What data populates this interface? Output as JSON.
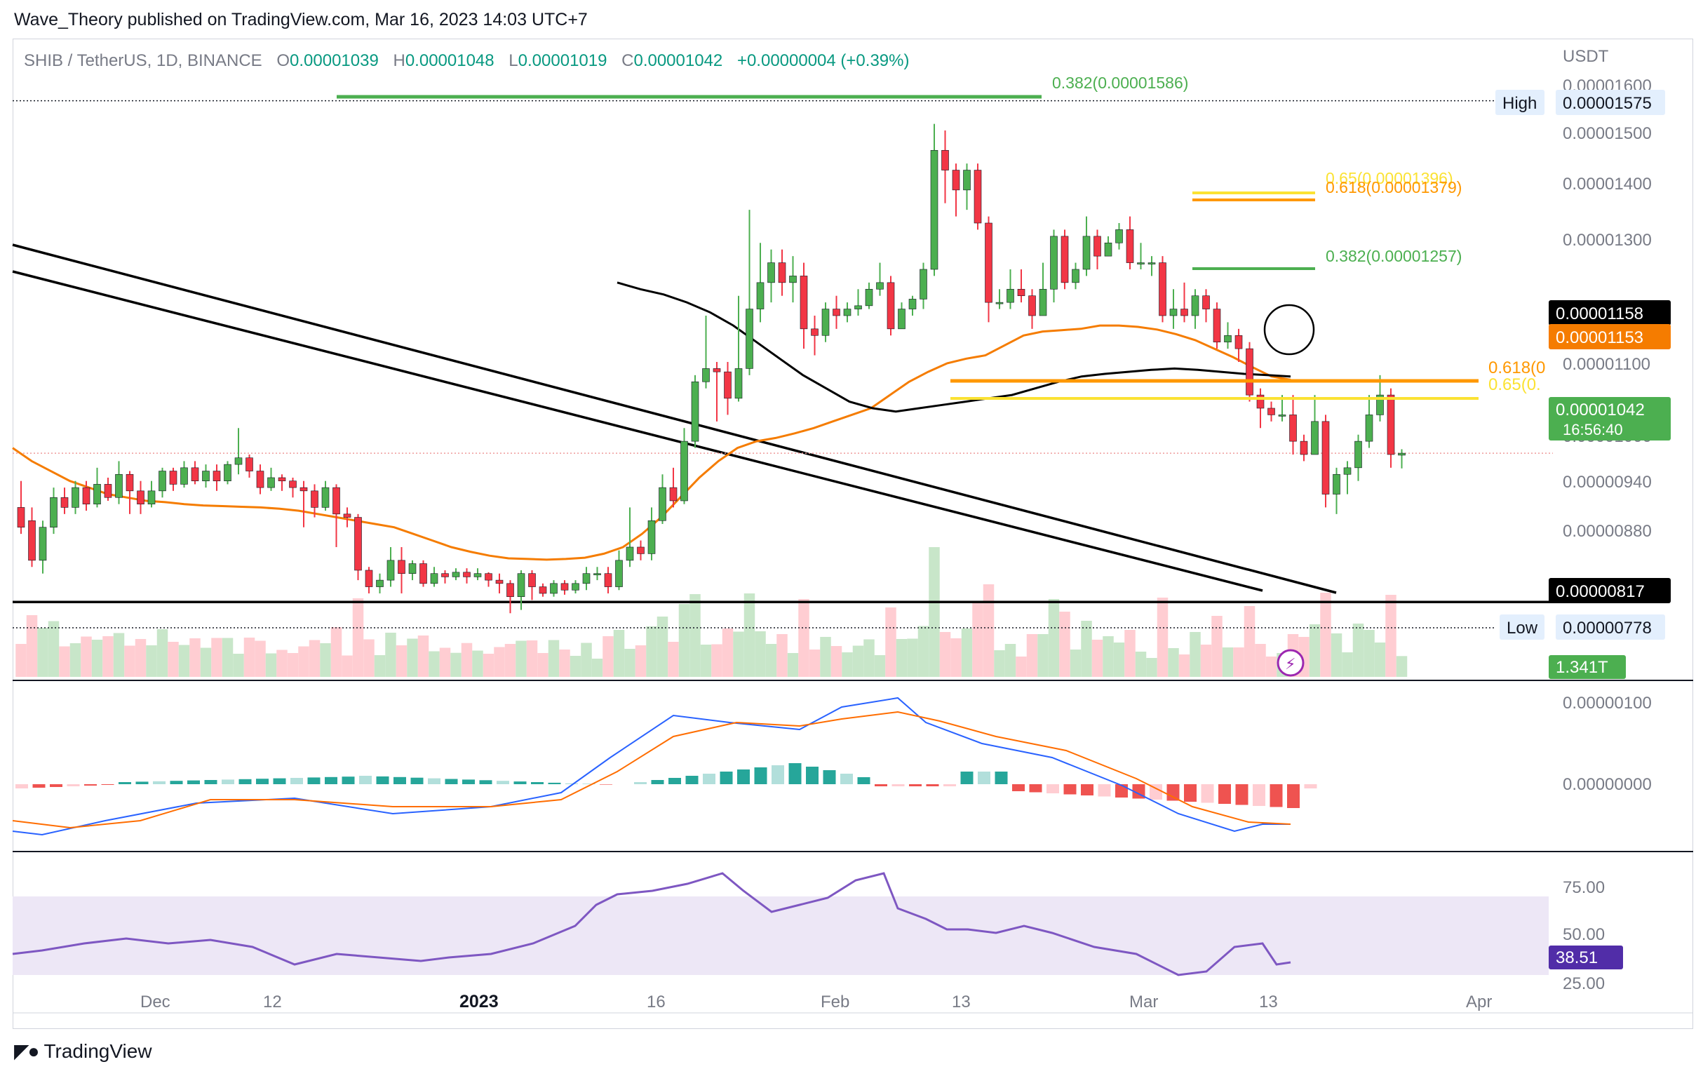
{
  "publisher": "Wave_Theory published on TradingView.com, Mar 16, 2023 14:03 UTC+7",
  "symbol_line": {
    "symbol": "SHIB / TetherUS, 1D, BINANCE",
    "o_label": "O",
    "o": "0.00001039",
    "h_label": "H",
    "h": "0.00001048",
    "l_label": "L",
    "l": "0.00001019",
    "c_label": "C",
    "c": "0.00001042",
    "change": "+0.00000004 (+0.39%)"
  },
  "currency": "USDT",
  "branding": "TradingView",
  "colors": {
    "up": "#26a69a",
    "down": "#ef5350",
    "candle_up": "#4caf50",
    "candle_down": "#f23645",
    "ema_orange": "#f57c00",
    "ema_black": "#000000",
    "fib_green": "#4caf50",
    "fib_orange": "#ff9800",
    "fib_yellow": "#fbe233",
    "macd_blue": "#2962ff",
    "signal_orange": "#ff6d00",
    "rsi": "#7e57c2",
    "rsi_band": "#ede7f6"
  },
  "price_axis_labels": [
    "0.00001600",
    "0.00001500",
    "0.00001400",
    "0.00001300",
    "0.00001100",
    "0.00001000",
    "0.00000940",
    "0.00000880",
    "0.00000778"
  ],
  "price_badges": {
    "high_label": "High",
    "high": "0.00001575",
    "ema_black": "0.00001158",
    "ema_orange": "0.00001153",
    "last": "0.00001042",
    "countdown": "16:56:40",
    "support": "0.00000817",
    "low_label": "Low",
    "low": "0.00000778",
    "volume": "1.341T"
  },
  "fib_labels": {
    "top_0382": "0.382(0.00001586)",
    "upper_065": "0.65(0.00001396)",
    "upper_0618": "0.618(0.00001379)",
    "mid_0382": "0.382(0.00001257)",
    "lower_0618": "0.618(0",
    "lower_065": "0.65(0."
  },
  "macd_axis_labels": [
    "0.00000100",
    "0.00000000"
  ],
  "rsi_axis_labels": [
    "75.00",
    "50.00",
    "25.00"
  ],
  "rsi_value": "38.51",
  "time_labels": [
    "Dec",
    "12",
    "2023",
    "16",
    "Feb",
    "13",
    "Mar",
    "13",
    "Apr"
  ],
  "chart_data": {
    "type": "candlestick",
    "symbol": "SHIB / TetherUS, 1D, BINANCE",
    "y_axis": {
      "ylim": [
        7.6e-06,
        1.62e-05
      ]
    },
    "candles": [
      [
        960,
        930,
        1000,
        920
      ],
      [
        940,
        880,
        960,
        870
      ],
      [
        880,
        930,
        940,
        860
      ],
      [
        930,
        975,
        990,
        920
      ],
      [
        975,
        960,
        990,
        950
      ],
      [
        960,
        990,
        1000,
        950
      ],
      [
        990,
        965,
        1000,
        955
      ],
      [
        965,
        995,
        1020,
        960
      ],
      [
        995,
        975,
        1005,
        970
      ],
      [
        975,
        1010,
        1030,
        965
      ],
      [
        1010,
        985,
        1015,
        950
      ],
      [
        985,
        965,
        1000,
        950
      ],
      [
        965,
        985,
        1000,
        960
      ],
      [
        985,
        1015,
        1020,
        975
      ],
      [
        1015,
        995,
        1020,
        985
      ],
      [
        995,
        1020,
        1030,
        990
      ],
      [
        1020,
        1000,
        1030,
        995
      ],
      [
        1000,
        1015,
        1025,
        990
      ],
      [
        1015,
        1000,
        1025,
        985
      ],
      [
        1000,
        1025,
        1030,
        995
      ],
      [
        1025,
        1035,
        1080,
        1010
      ],
      [
        1035,
        1015,
        1040,
        1005
      ],
      [
        1015,
        990,
        1025,
        980
      ],
      [
        990,
        1005,
        1020,
        985
      ],
      [
        1005,
        1000,
        1010,
        985
      ],
      [
        1000,
        990,
        1005,
        975
      ],
      [
        990,
        985,
        1000,
        930
      ],
      [
        985,
        960,
        995,
        945
      ],
      [
        960,
        990,
        1000,
        955
      ],
      [
        990,
        950,
        995,
        900
      ],
      [
        950,
        945,
        960,
        930
      ],
      [
        945,
        865,
        950,
        850
      ],
      [
        865,
        840,
        870,
        830
      ],
      [
        840,
        850,
        860,
        830
      ],
      [
        850,
        880,
        900,
        840
      ],
      [
        880,
        860,
        900,
        830
      ],
      [
        860,
        875,
        880,
        850
      ],
      [
        875,
        845,
        880,
        840
      ],
      [
        845,
        860,
        870,
        840
      ],
      [
        860,
        855,
        865,
        845
      ],
      [
        855,
        862,
        868,
        850
      ],
      [
        862,
        855,
        868,
        845
      ],
      [
        855,
        860,
        868,
        850
      ],
      [
        860,
        850,
        862,
        840
      ],
      [
        850,
        845,
        860,
        830
      ],
      [
        845,
        825,
        850,
        800
      ],
      [
        825,
        860,
        865,
        805
      ],
      [
        860,
        840,
        865,
        820
      ],
      [
        840,
        830,
        845,
        825
      ],
      [
        830,
        845,
        850,
        825
      ],
      [
        845,
        835,
        850,
        828
      ],
      [
        835,
        845,
        850,
        830
      ],
      [
        845,
        860,
        870,
        835
      ],
      [
        860,
        860,
        870,
        850
      ],
      [
        860,
        840,
        870,
        830
      ],
      [
        840,
        880,
        895,
        835
      ],
      [
        880,
        900,
        960,
        870
      ],
      [
        900,
        890,
        910,
        880
      ],
      [
        890,
        940,
        960,
        880
      ],
      [
        940,
        990,
        1010,
        935
      ],
      [
        990,
        970,
        1020,
        960
      ],
      [
        970,
        1060,
        1080,
        965
      ],
      [
        1060,
        1150,
        1160,
        1050
      ],
      [
        1150,
        1170,
        1250,
        1140
      ],
      [
        1170,
        1165,
        1180,
        1090
      ],
      [
        1165,
        1125,
        1180,
        1100
      ],
      [
        1125,
        1170,
        1280,
        1120
      ],
      [
        1170,
        1260,
        1410,
        1160
      ],
      [
        1260,
        1300,
        1360,
        1240
      ],
      [
        1300,
        1330,
        1350,
        1270
      ],
      [
        1330,
        1300,
        1350,
        1280
      ],
      [
        1300,
        1310,
        1340,
        1270
      ],
      [
        1310,
        1230,
        1330,
        1200
      ],
      [
        1230,
        1220,
        1250,
        1190
      ],
      [
        1220,
        1260,
        1270,
        1210
      ],
      [
        1260,
        1250,
        1280,
        1230
      ],
      [
        1250,
        1260,
        1270,
        1240
      ],
      [
        1260,
        1265,
        1290,
        1250
      ],
      [
        1265,
        1290,
        1300,
        1260
      ],
      [
        1290,
        1300,
        1330,
        1280
      ],
      [
        1300,
        1230,
        1310,
        1220
      ],
      [
        1230,
        1260,
        1270,
        1230
      ],
      [
        1260,
        1275,
        1280,
        1250
      ],
      [
        1275,
        1320,
        1330,
        1260
      ],
      [
        1320,
        1500,
        1540,
        1310
      ],
      [
        1500,
        1470,
        1530,
        1420
      ],
      [
        1470,
        1440,
        1480,
        1400
      ],
      [
        1440,
        1470,
        1480,
        1410
      ],
      [
        1470,
        1390,
        1480,
        1380
      ],
      [
        1390,
        1270,
        1400,
        1240
      ],
      [
        1270,
        1270,
        1290,
        1260
      ],
      [
        1270,
        1290,
        1320,
        1260
      ],
      [
        1290,
        1280,
        1320,
        1270
      ],
      [
        1280,
        1250,
        1290,
        1230
      ],
      [
        1250,
        1290,
        1330,
        1250
      ],
      [
        1290,
        1370,
        1380,
        1270
      ],
      [
        1370,
        1300,
        1380,
        1290
      ],
      [
        1300,
        1320,
        1330,
        1290
      ],
      [
        1320,
        1370,
        1400,
        1310
      ],
      [
        1370,
        1340,
        1380,
        1320
      ],
      [
        1340,
        1360,
        1370,
        1340
      ],
      [
        1360,
        1380,
        1390,
        1350
      ],
      [
        1380,
        1330,
        1400,
        1320
      ],
      [
        1330,
        1330,
        1360,
        1320
      ],
      [
        1330,
        1330,
        1340,
        1310
      ],
      [
        1330,
        1250,
        1340,
        1240
      ],
      [
        1250,
        1260,
        1290,
        1230
      ],
      [
        1260,
        1250,
        1300,
        1240
      ],
      [
        1250,
        1280,
        1290,
        1230
      ],
      [
        1280,
        1260,
        1290,
        1240
      ],
      [
        1260,
        1210,
        1270,
        1200
      ],
      [
        1210,
        1220,
        1240,
        1200
      ],
      [
        1220,
        1200,
        1230,
        1180
      ],
      [
        1200,
        1130,
        1210,
        1120
      ],
      [
        1130,
        1110,
        1140,
        1080
      ],
      [
        1110,
        1100,
        1120,
        1090
      ],
      [
        1100,
        1100,
        1130,
        1090
      ],
      [
        1100,
        1060,
        1130,
        1040
      ],
      [
        1060,
        1040,
        1070,
        1030
      ],
      [
        1040,
        1090,
        1130,
        1040
      ],
      [
        1090,
        980,
        1100,
        960
      ],
      [
        980,
        1010,
        1020,
        950
      ],
      [
        1010,
        1020,
        1030,
        980
      ],
      [
        1020,
        1060,
        1070,
        1000
      ],
      [
        1060,
        1100,
        1130,
        1050
      ],
      [
        1100,
        1130,
        1160,
        1090
      ],
      [
        1130,
        1040,
        1140,
        1020
      ],
      [
        1039,
        1042,
        1048,
        1019
      ]
    ],
    "ema_orange": [
      1050,
      1030,
      1015,
      1000,
      990,
      980,
      975,
      970,
      968,
      965,
      963,
      962,
      961,
      960,
      958,
      955,
      950,
      945,
      940,
      935,
      930,
      920,
      910,
      900,
      893,
      887,
      883,
      882,
      881,
      882,
      884,
      890,
      900,
      920,
      945,
      975,
      1005,
      1030,
      1050,
      1060,
      1065,
      1072,
      1080,
      1090,
      1100,
      1110,
      1130,
      1150,
      1165,
      1178,
      1185,
      1190,
      1205,
      1220,
      1226,
      1228,
      1230,
      1235,
      1235,
      1233,
      1229,
      1222,
      1213,
      1200,
      1187,
      1172,
      1158,
      1153
    ],
    "ema_black": [
      1300,
      1290,
      1282,
      1270,
      1255,
      1235,
      1210,
      1185,
      1160,
      1140,
      1120,
      1110,
      1105,
      1110,
      1115,
      1120,
      1125,
      1130,
      1140,
      1150,
      1158,
      1162,
      1165,
      1168,
      1170,
      1168,
      1165,
      1162,
      1160,
      1158
    ],
    "resistance_price": 8.17e-06,
    "fib_levels": [
      {
        "ratio": 0.382,
        "price": 1.586e-05
      },
      {
        "ratio": 0.65,
        "price": 1.396e-05
      },
      {
        "ratio": 0.618,
        "price": 1.379e-05
      },
      {
        "ratio": 0.382,
        "price": 1.257e-05
      }
    ],
    "last_price": 1.042e-05,
    "high_price": 1.575e-05,
    "low_price": 7.78e-06,
    "volume_last": "1.341T",
    "rsi_last": 38.51
  }
}
